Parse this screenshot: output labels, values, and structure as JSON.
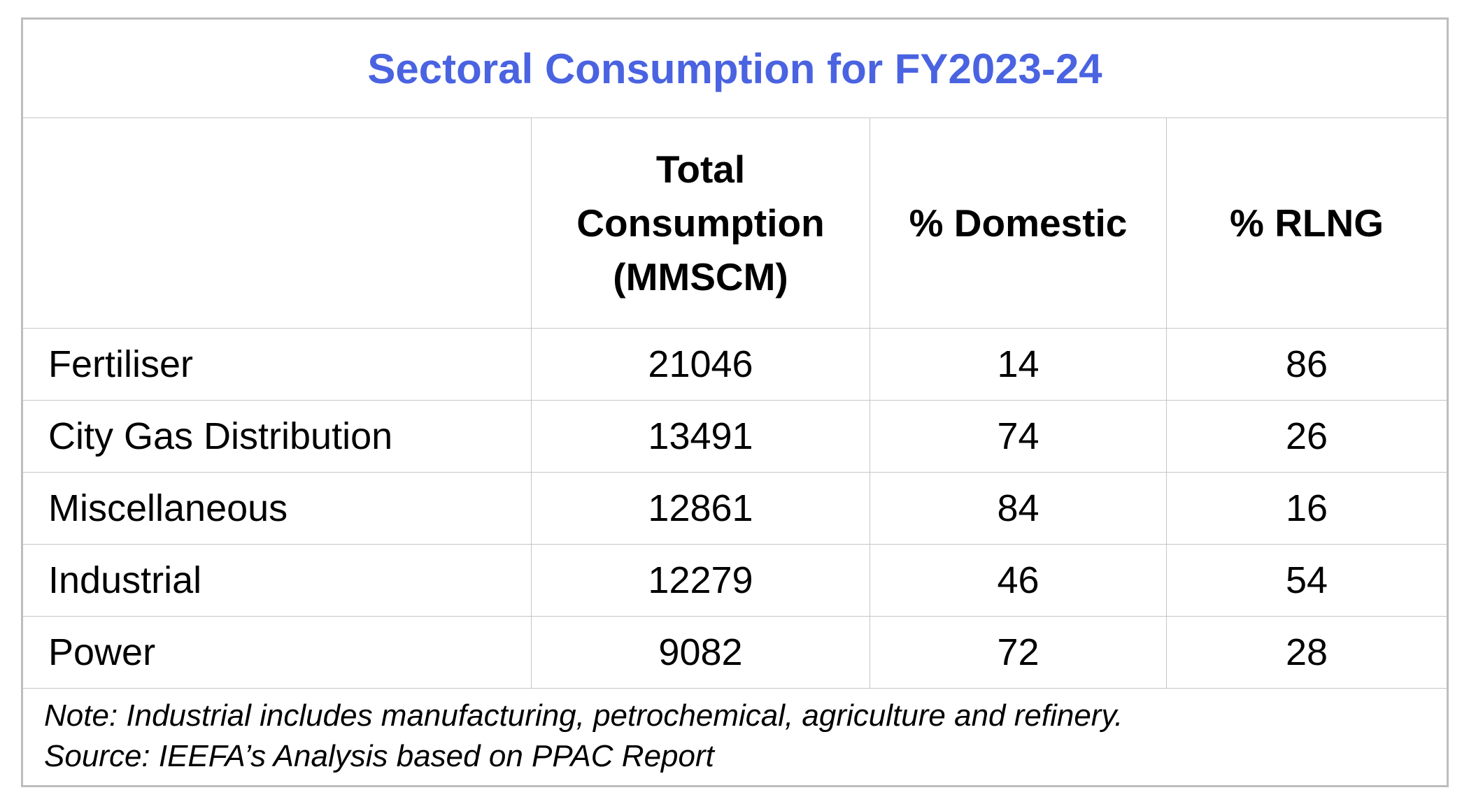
{
  "chart_data": {
    "type": "table",
    "title": "Sectoral Consumption for FY2023-24",
    "columns": [
      "",
      "Total Consumption (MMSCM)",
      "% Domestic",
      "% RLNG"
    ],
    "rows": [
      [
        "Fertiliser",
        21046,
        14,
        86
      ],
      [
        "City Gas Distribution",
        13491,
        74,
        26
      ],
      [
        "Miscellaneous",
        12861,
        84,
        16
      ],
      [
        "Industrial",
        12279,
        46,
        54
      ],
      [
        "Power",
        9082,
        72,
        28
      ]
    ],
    "note": "Note: Industrial includes manufacturing, petrochemical, agriculture and refinery.",
    "source": "Source: IEEFA’s Analysis based on PPAC Report",
    "layout_hints": {
      "title_position": "top-row-spanning-all-columns",
      "value_alignment": "center",
      "sector_alignment": "left",
      "grid": "on"
    }
  },
  "colors": {
    "title_text": "#4A63E1",
    "body_text": "#000000",
    "border_outer": "#bdbdbd",
    "border_inner": "#c6c6c6",
    "background": "#ffffff"
  }
}
